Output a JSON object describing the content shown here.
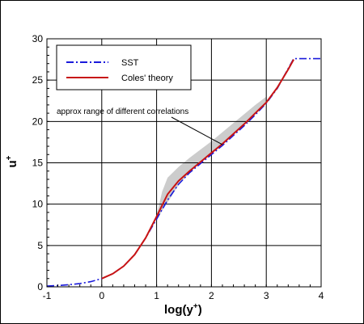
{
  "chart_data": {
    "type": "line",
    "xlabel": "log(y",
    "xlabel_sup": "+",
    "xlabel_close": ")",
    "ylabel": "u",
    "ylabel_sup": "+",
    "xlim": [
      -1,
      4
    ],
    "ylim": [
      0,
      30
    ],
    "xticks": [
      -1,
      0,
      1,
      2,
      3,
      4
    ],
    "yticks": [
      0,
      5,
      10,
      15,
      20,
      25,
      30
    ],
    "grid": true,
    "legend_position": "top-left",
    "colors": {
      "sst": "#1a1adb",
      "coles": "#c81414",
      "band": "#cccccc"
    },
    "series": [
      {
        "name": "SST",
        "style": "dash-dot",
        "x": [
          -1.0,
          -0.8,
          -0.6,
          -0.4,
          -0.2,
          0.0,
          0.2,
          0.4,
          0.6,
          0.8,
          1.0,
          1.2,
          1.4,
          1.6,
          1.8,
          2.0,
          2.2,
          2.4,
          2.6,
          2.8,
          3.0,
          3.2,
          3.4,
          3.5,
          3.6,
          3.8,
          4.0
        ],
        "y": [
          0.1,
          0.16,
          0.25,
          0.4,
          0.63,
          1.0,
          1.58,
          2.5,
          3.9,
          5.9,
          8.2,
          10.5,
          12.4,
          13.8,
          14.9,
          16.0,
          17.1,
          18.3,
          19.5,
          20.8,
          22.2,
          24.0,
          26.4,
          27.6,
          27.6,
          27.6,
          27.6
        ]
      },
      {
        "name": "Coles' theory",
        "style": "solid",
        "x": [
          0.0,
          0.2,
          0.4,
          0.6,
          0.8,
          1.0,
          1.2,
          1.4,
          1.6,
          1.8,
          2.0,
          2.2,
          2.4,
          2.6,
          2.8,
          3.0,
          3.2,
          3.4,
          3.5
        ],
        "y": [
          1.0,
          1.58,
          2.5,
          3.9,
          5.9,
          8.5,
          11.2,
          12.8,
          14.0,
          15.1,
          16.2,
          17.3,
          18.5,
          19.7,
          21.0,
          22.3,
          24.1,
          26.3,
          27.5
        ]
      }
    ],
    "band": {
      "label": "approx range of different correlations",
      "x": [
        1.0,
        1.1,
        1.2,
        1.4,
        1.6,
        1.8,
        2.0,
        2.2,
        2.4,
        2.6,
        2.8,
        3.0
      ],
      "y_low": [
        8.0,
        9.2,
        10.2,
        12.3,
        13.8,
        15.0,
        16.1,
        17.2,
        18.4,
        19.6,
        20.9,
        22.2
      ],
      "y_high": [
        8.6,
        11.5,
        13.2,
        14.5,
        15.6,
        16.6,
        17.6,
        18.7,
        19.8,
        20.9,
        22.0,
        23.0
      ]
    },
    "annotation_arrow_target": {
      "x": 2.2,
      "y": 17.2
    }
  }
}
